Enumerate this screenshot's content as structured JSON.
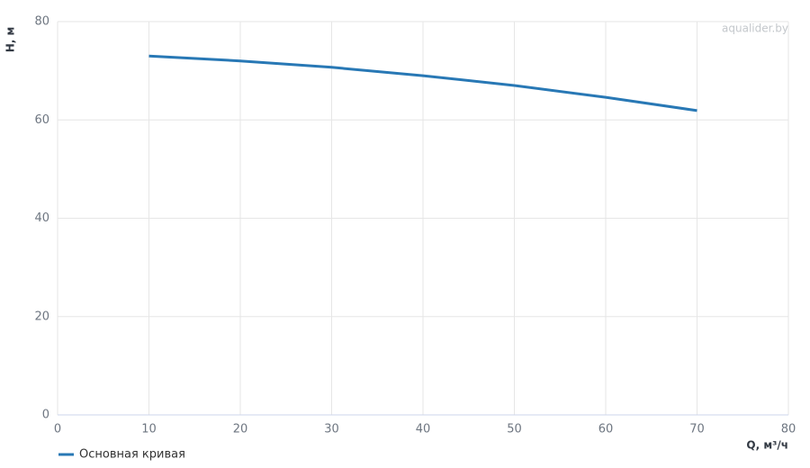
{
  "chart_data": {
    "type": "line",
    "x_label": "Q, м³/ч",
    "y_label": "H, м",
    "watermark": "aqualider.by",
    "x": [
      10,
      20,
      30,
      40,
      50,
      60,
      70
    ],
    "series": [
      {
        "name": "Основная кривая",
        "color": "#2878b5",
        "values": [
          73,
          72,
          70.7,
          69,
          67,
          64.6,
          61.9
        ]
      }
    ],
    "xlim": [
      0,
      80
    ],
    "xticks": [
      0,
      10,
      20,
      30,
      40,
      50,
      60,
      70,
      80
    ],
    "ylim": [
      0,
      80
    ],
    "yticks": [
      0,
      20,
      40,
      60,
      80
    ],
    "grid": true
  }
}
